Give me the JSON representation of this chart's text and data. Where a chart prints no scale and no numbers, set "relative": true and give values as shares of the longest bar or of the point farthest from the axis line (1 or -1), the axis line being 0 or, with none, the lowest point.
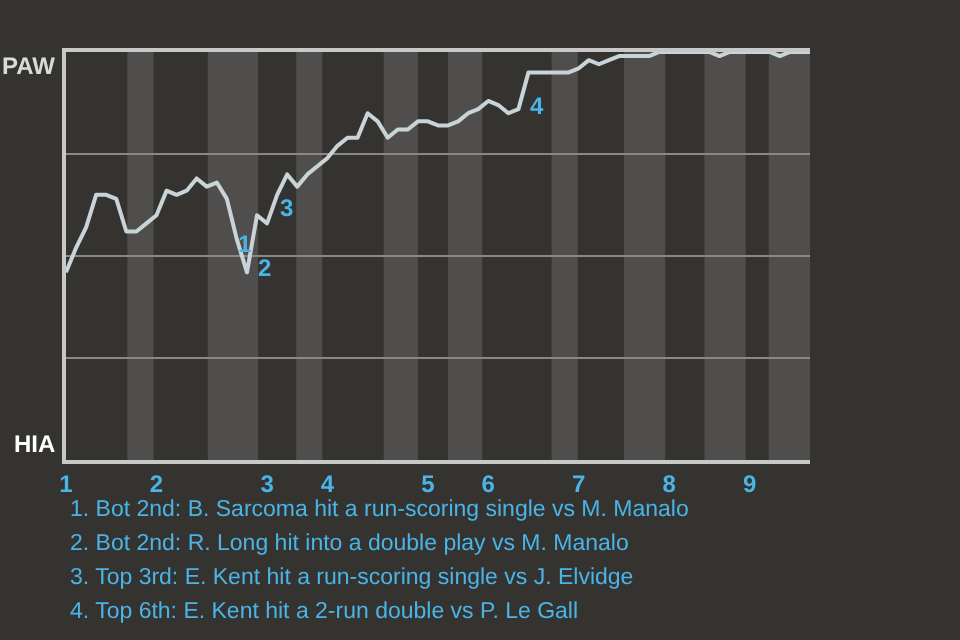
{
  "chart_data": {
    "type": "line",
    "categories": [
      "1",
      null,
      null,
      null,
      null,
      null,
      null,
      null,
      null,
      "2",
      null,
      null,
      null,
      null,
      null,
      null,
      null,
      null,
      null,
      null,
      "3",
      null,
      null,
      null,
      null,
      null,
      "4",
      null,
      null,
      null,
      null,
      null,
      null,
      null,
      null,
      null,
      "5",
      null,
      null,
      null,
      null,
      null,
      "6",
      null,
      null,
      null,
      null,
      null,
      null,
      null,
      null,
      "7",
      null,
      null,
      null,
      null,
      null,
      null,
      null,
      null,
      "8",
      null,
      null,
      null,
      null,
      null,
      null,
      null,
      "9",
      null,
      null,
      null,
      null,
      null,
      null
    ],
    "relative": true,
    "series": [
      {
        "color": "#c8d4d8",
        "values": [
          0.46,
          0.52,
          0.57,
          0.65,
          0.65,
          0.64,
          0.56,
          0.56,
          0.58,
          0.6,
          0.66,
          0.65,
          0.66,
          0.69,
          0.67,
          0.68,
          0.64,
          0.54,
          0.46,
          0.6,
          0.58,
          0.65,
          0.7,
          0.67,
          0.7,
          0.72,
          0.74,
          0.77,
          0.79,
          0.79,
          0.85,
          0.83,
          0.79,
          0.81,
          0.81,
          0.83,
          0.83,
          0.82,
          0.82,
          0.83,
          0.85,
          0.86,
          0.88,
          0.87,
          0.85,
          0.86,
          0.95,
          0.95,
          0.95,
          0.95,
          0.95,
          0.96,
          0.98,
          0.97,
          0.98,
          0.99,
          0.99,
          0.99,
          0.99,
          1.0,
          1.0,
          1.0,
          1.0,
          1.0,
          1.0,
          0.99,
          1.0,
          1.0,
          1.0,
          1.0,
          1.0,
          0.99,
          1.0,
          1.0,
          1.0
        ]
      }
    ],
    "marker": "none",
    "line_style": "solid",
    "ref_lines": [
      {
        "axis": "y",
        "value": 0.25,
        "color": "#8a8886"
      },
      {
        "axis": "y",
        "value": 0.5,
        "color": "#8a8886"
      },
      {
        "axis": "y",
        "value": 0.75,
        "color": "#8a8886"
      }
    ],
    "annotations": [
      "PAW",
      "HIA",
      "1",
      "2",
      "3",
      "4",
      "1. Bot 2nd: B. Sarcoma hit a run-scoring single vs M. Manalo",
      "2. Bot 2nd: R. Long hit into a double play vs M. Manalo",
      "3. Top 3rd: E. Kent hit a run-scoring single vs J. Elvidge",
      "4. Top 6th: E. Kent hit a 2-run double vs P. Le Gall"
    ]
  }
}
